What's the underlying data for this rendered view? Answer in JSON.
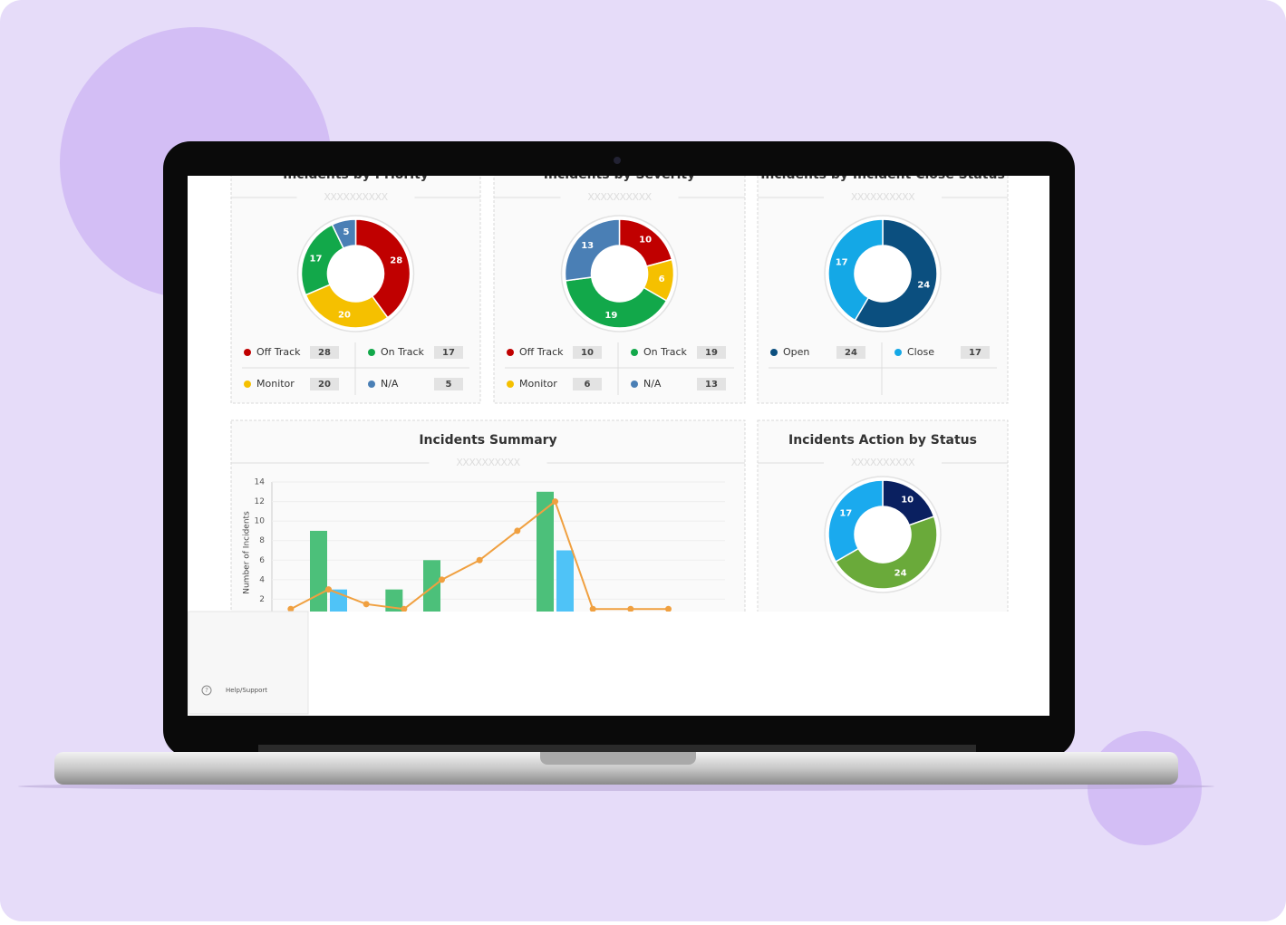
{
  "chart_data": [
    {
      "type": "donut",
      "title": "Incidents by Priority",
      "subtitle": "XXXXXXXXXX",
      "categories": [
        "Off Track",
        "Monitor",
        "On Track",
        "N/A"
      ],
      "values": [
        28,
        20,
        17,
        5
      ],
      "colors": [
        "#c00000",
        "#f5c000",
        "#12a84a",
        "#4a7fb5"
      ],
      "legend": true
    },
    {
      "type": "donut",
      "title": "Incidents by Severity",
      "subtitle": "XXXXXXXXXX",
      "categories": [
        "Off Track",
        "Monitor",
        "On Track",
        "N/A"
      ],
      "values": [
        10,
        6,
        19,
        13
      ],
      "colors": [
        "#c00000",
        "#f5c000",
        "#12a84a",
        "#4a7fb5"
      ],
      "legend": true
    },
    {
      "type": "donut",
      "title": "Incidents by Incident Close Status",
      "subtitle": "XXXXXXXXXX",
      "categories": [
        "Open",
        "Close"
      ],
      "values": [
        24,
        17
      ],
      "colors": [
        "#0b4f7f",
        "#14a8e6"
      ],
      "legend": true
    },
    {
      "type": "combo",
      "title": "Incidents Summary",
      "subtitle": "XXXXXXXXXX",
      "y_label": "Number of Incidents",
      "categories": [
        null,
        null,
        null,
        null,
        null,
        null,
        null,
        null,
        null,
        null,
        null,
        null
      ],
      "ylim": [
        0,
        14
      ],
      "yticks": [
        2,
        4,
        6,
        8,
        10,
        12,
        14
      ],
      "grid": true,
      "series": [
        {
          "type": "bar",
          "color": "#4cc07a",
          "values": [
            0,
            9,
            0,
            3,
            6,
            0,
            0,
            13,
            0,
            0,
            0,
            0
          ]
        },
        {
          "type": "bar",
          "color": "#4fc3f7",
          "values": [
            0,
            3,
            0,
            0,
            0,
            0.2,
            0,
            7,
            0,
            0,
            0,
            0
          ]
        },
        {
          "type": "line",
          "color": "#f0a040",
          "values": [
            1,
            3,
            1.5,
            1,
            4,
            6,
            9,
            12,
            1,
            1,
            1,
            null
          ]
        }
      ]
    },
    {
      "type": "donut",
      "title": "Incidents Action by Status",
      "subtitle": "XXXXXXXXXX",
      "values": [
        10,
        24,
        17
      ],
      "colors": [
        "#0a2060",
        "#6aaa3a",
        "#1aaaee"
      ]
    }
  ],
  "sidebar": {
    "help": "Help/Support"
  }
}
